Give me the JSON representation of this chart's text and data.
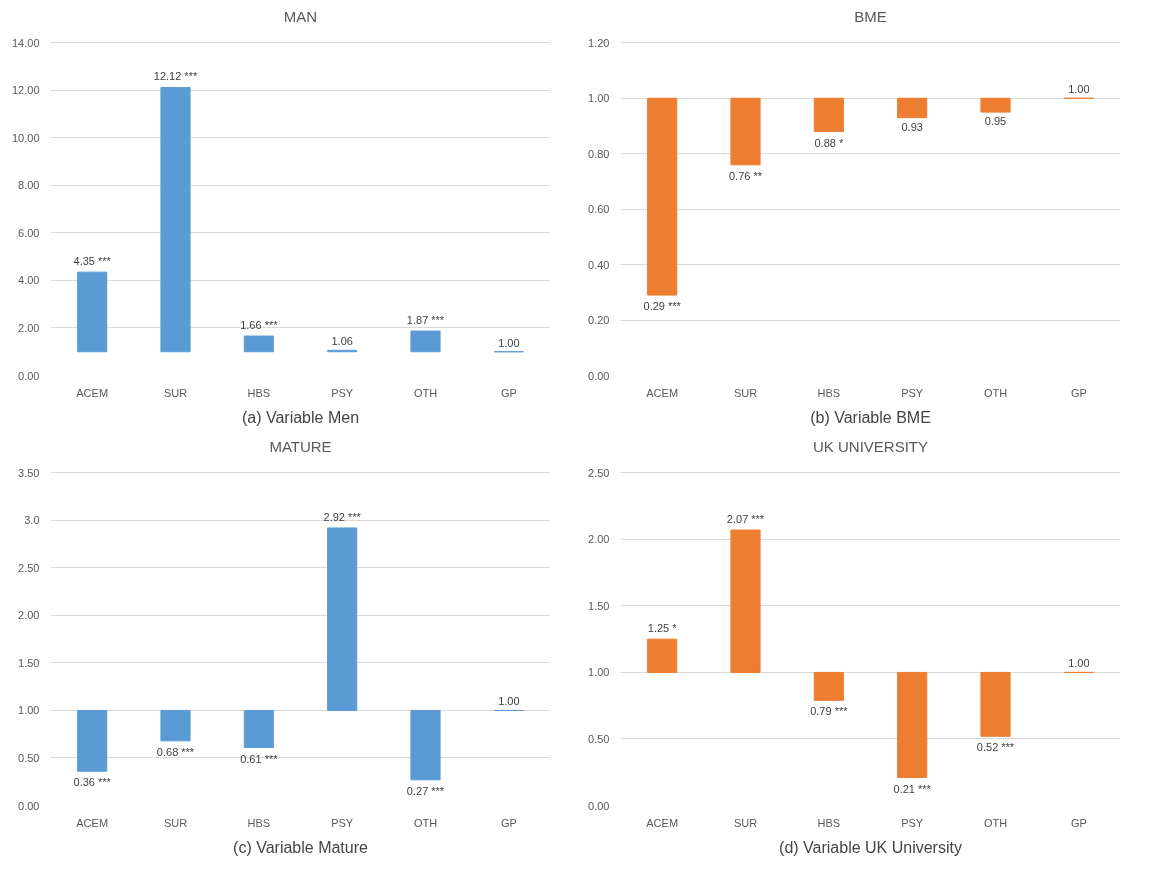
{
  "chart_data": [
    {
      "type": "bar",
      "title": "MAN",
      "categories": [
        "ACEM",
        "SUR",
        "HBS",
        "PSY",
        "OTH",
        "GP"
      ],
      "base": [
        1,
        1,
        1,
        1,
        1,
        1
      ],
      "values": [
        3.35,
        11.12,
        0.66,
        0.06,
        0.87,
        0
      ],
      "color": "#5b9bd5",
      "value_labels": [
        "4.35 ***",
        "12.12 ***",
        "1.66 ***",
        "1.06",
        "1.87 ***",
        "1.00"
      ],
      "ylim": [
        0,
        14
      ],
      "yticks": [
        {
          "value": 0,
          "label": "0.00"
        },
        {
          "value": 2,
          "label": "2.00"
        },
        {
          "value": 4,
          "label": "4.00"
        },
        {
          "value": 6,
          "label": "6.00"
        },
        {
          "value": 8,
          "label": "8.00"
        },
        {
          "value": 10,
          "label": "10.00"
        },
        {
          "value": 12,
          "label": "12.00"
        },
        {
          "value": 14,
          "label": "14.00"
        }
      ],
      "grid": "y",
      "annotations": [
        "(a) Variable Men"
      ]
    },
    {
      "type": "bar",
      "title": "BME",
      "categories": [
        "ACEM",
        "SUR",
        "HBS",
        "PSY",
        "OTH",
        "GP"
      ],
      "base": [
        1,
        1,
        1,
        1,
        1,
        1
      ],
      "values": [
        -0.71,
        -0.24,
        -0.12,
        -0.07,
        -0.05,
        0
      ],
      "color": "#ed7d31",
      "value_labels": [
        "0.29 ***",
        "0.76 **",
        "0.88 *",
        "0.93",
        "0.95",
        "1.00"
      ],
      "ylim": [
        0,
        1.2
      ],
      "yticks": [
        {
          "value": 0,
          "label": "0.00"
        },
        {
          "value": 0.2,
          "label": "0.20"
        },
        {
          "value": 0.4,
          "label": "0.40"
        },
        {
          "value": 0.6,
          "label": "0.60"
        },
        {
          "value": 0.8,
          "label": "0.80"
        },
        {
          "value": 1,
          "label": "1.00"
        },
        {
          "value": 1.2,
          "label": "1.20"
        }
      ],
      "grid": "y",
      "annotations": [
        "(b) Variable BME"
      ]
    },
    {
      "type": "bar",
      "title": "MATURE",
      "categories": [
        "ACEM",
        "SUR",
        "HBS",
        "PSY",
        "OTH",
        "GP"
      ],
      "base": [
        1,
        1,
        1,
        1,
        1,
        1
      ],
      "values": [
        -0.64,
        -0.32,
        -0.39,
        1.92,
        -0.73,
        0
      ],
      "color": "#5b9bd5",
      "value_labels": [
        "0.36 ***",
        "0.68 ***",
        "0.61 ***",
        "2.92 ***",
        "0.27 ***",
        "1.00"
      ],
      "ylim": [
        0,
        3.5
      ],
      "yticks": [
        {
          "value": 0,
          "label": "0.00"
        },
        {
          "value": 0.5,
          "label": "0.50"
        },
        {
          "value": 1,
          "label": "1.00"
        },
        {
          "value": 1.5,
          "label": "1.50"
        },
        {
          "value": 2,
          "label": "2.00"
        },
        {
          "value": 2.5,
          "label": "2.50"
        },
        {
          "value": 3,
          "label": "3.0"
        },
        {
          "value": 3.5,
          "label": "3.50"
        }
      ],
      "grid": "y",
      "annotations": [
        "(c) Variable Mature"
      ]
    },
    {
      "type": "bar",
      "title": "UK UNIVERSITY",
      "categories": [
        "ACEM",
        "SUR",
        "HBS",
        "PSY",
        "OTH",
        "GP"
      ],
      "base": [
        1,
        1,
        1,
        1,
        1,
        1
      ],
      "values": [
        0.25,
        1.07,
        -0.21,
        -0.79,
        -0.48,
        0
      ],
      "color": "#ed7d31",
      "value_labels": [
        "1.25 *",
        "2.07 ***",
        "0.79 ***",
        "0.21 ***",
        "0.52 ***",
        "1.00"
      ],
      "ylim": [
        0,
        2.5
      ],
      "yticks": [
        {
          "value": 0,
          "label": "0.00"
        },
        {
          "value": 0.5,
          "label": "0.50"
        },
        {
          "value": 1,
          "label": "1.00"
        },
        {
          "value": 1.5,
          "label": "1.50"
        },
        {
          "value": 2,
          "label": "2.00"
        },
        {
          "value": 2.5,
          "label": "2.50"
        }
      ],
      "grid": "y",
      "annotations": [
        "(d) Variable UK University"
      ]
    }
  ]
}
